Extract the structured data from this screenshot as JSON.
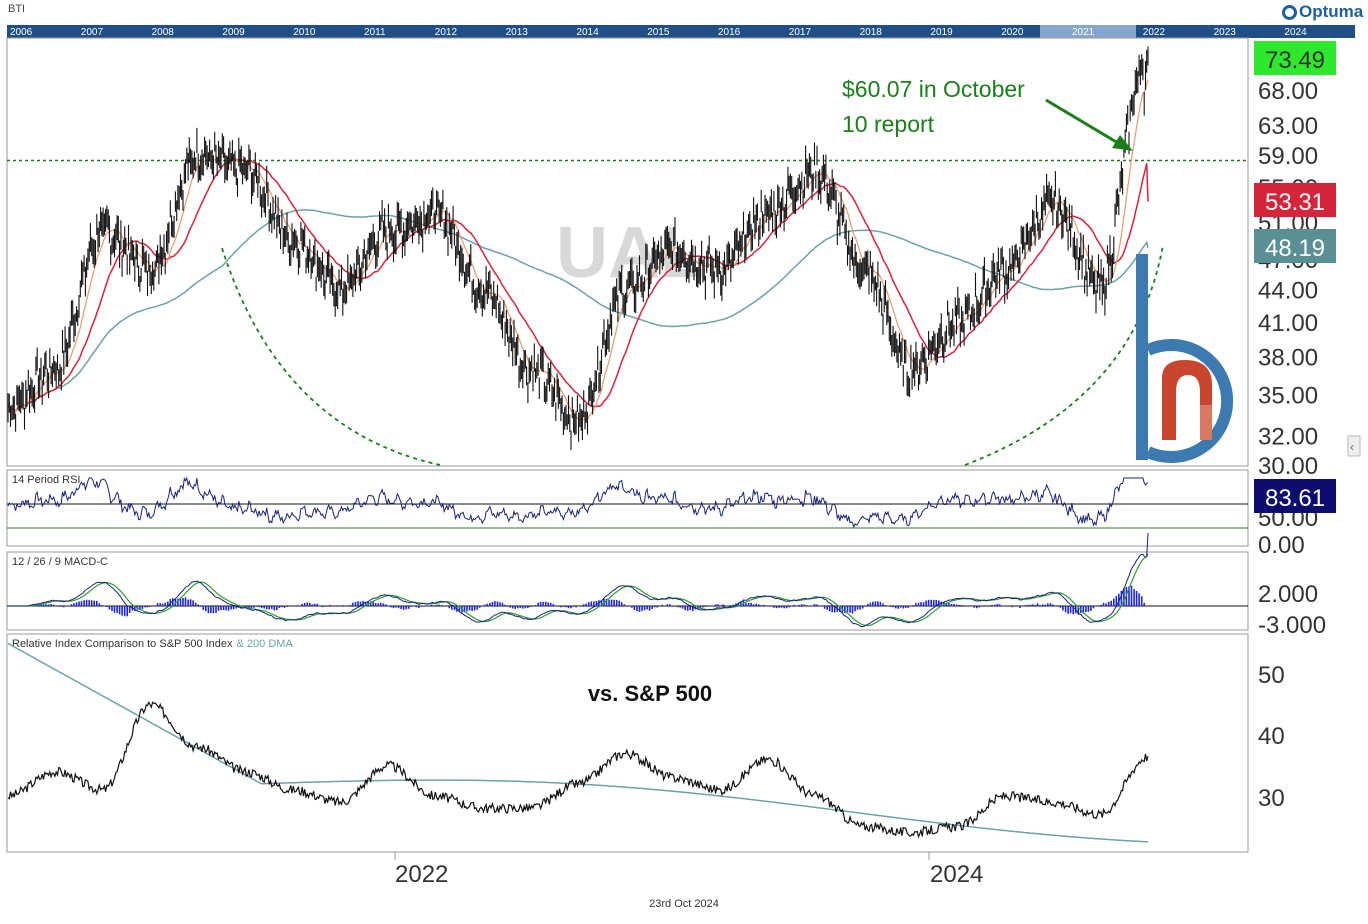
{
  "ticker": "BTI",
  "brand": "Optuma",
  "footer_date": "23rd Oct 2024",
  "colors": {
    "price": "#111111",
    "ema_fast": "#e8a07a",
    "ema_slow": "#d6243a",
    "sma200": "#6aa3a8",
    "rsi": "#1a237e",
    "macd": "#1a237e",
    "macd_signal": "#2e9e2e",
    "macd_hist": "#1e24e0",
    "resistance": "#1a7f1a",
    "label_green": "#2ee82e",
    "label_red": "#d6243a",
    "label_teal": "#5a8f95",
    "label_navy": "#0d0d6e"
  },
  "overview_years": [
    "2006",
    "2007",
    "2008",
    "2009",
    "2010",
    "2011",
    "2012",
    "2013",
    "2014",
    "2015",
    "2016",
    "2017",
    "2018",
    "2019",
    "2020",
    "2021",
    "2022",
    "2023",
    "2024"
  ],
  "watermark": "UAL",
  "annotation": {
    "line1": "$60.07 in October",
    "line2": "10 report"
  },
  "price_panel": {
    "y_ticks": [
      "68.00",
      "63.00",
      "59.00",
      "55.00",
      "51.00",
      "47.00",
      "44.00",
      "41.00",
      "38.00",
      "35.00",
      "32.00",
      "30.00"
    ],
    "last_price": "73.49",
    "ema_value": "53.31",
    "sma_value": "48.19"
  },
  "rsi_panel": {
    "title": "14 Period RSI",
    "y_ticks": [
      "50.00",
      "0.00"
    ],
    "value": "83.61"
  },
  "macd_panel": {
    "title": "12 / 26 / 9 MACD-C",
    "y_ticks": [
      "2.000",
      "-3.000"
    ]
  },
  "rel_panel": {
    "title": "Relative Index Comparison to S&P 500 Index",
    "title_suffix": "& 200 DMA",
    "label": "vs. S&P 500",
    "y_ticks": [
      "50",
      "40",
      "30"
    ]
  },
  "x_axis": {
    "labels": [
      "2022",
      "2024"
    ]
  },
  "chart_data": {
    "type": "line",
    "series": [
      {
        "name": "BTI",
        "x": [
          "2020-10",
          "2020-12",
          "2021-02",
          "2021-04",
          "2021-06",
          "2021-08",
          "2021-10",
          "2021-12",
          "2022-02",
          "2022-04",
          "2022-06",
          "2022-08",
          "2022-10",
          "2022-12",
          "2023-02",
          "2023-04",
          "2023-06",
          "2023-08",
          "2023-10",
          "2023-12",
          "2024-02",
          "2024-04",
          "2024-06",
          "2024-08",
          "2024-10"
        ],
        "values": [
          34,
          37,
          50,
          46,
          59,
          57,
          49,
          44,
          50,
          52,
          44,
          37,
          33,
          44,
          48,
          46,
          52,
          57,
          46,
          37,
          41,
          46,
          53,
          44,
          73.49
        ]
      }
    ],
    "current_values": {
      "price": 73.49,
      "ema": 53.31,
      "sma200": 48.19,
      "rsi": 83.61
    },
    "resistance": 58.3,
    "annotation_value": 60.07,
    "ylim": [
      30,
      75
    ],
    "scale": "log",
    "grid": false
  }
}
